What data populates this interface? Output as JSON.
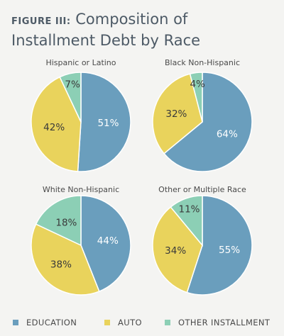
{
  "title": {
    "figure_label": "FIGURE III:",
    "text": "Composition of Installment Debt by Race"
  },
  "colors": {
    "education": "#6a9ebd",
    "auto": "#e9d35c",
    "other": "#8ccfb5"
  },
  "legend": {
    "education": "EDUCATION",
    "auto": "AUTO",
    "other": "OTHER INSTALLMENT"
  },
  "chart_data": {
    "type": "pie",
    "title": "Composition of Installment Debt by Race",
    "categories": [
      "EDUCATION",
      "AUTO",
      "OTHER INSTALLMENT"
    ],
    "legend_position": "bottom",
    "charts": [
      {
        "name": "Hispanic or Latino",
        "values": [
          51,
          42,
          7
        ],
        "labels": [
          "51%",
          "42%",
          "7%"
        ]
      },
      {
        "name": "Black Non-Hispanic",
        "values": [
          64,
          32,
          4
        ],
        "labels": [
          "64%",
          "32%",
          "4%"
        ]
      },
      {
        "name": "White Non-Hispanic",
        "values": [
          44,
          38,
          18
        ],
        "labels": [
          "44%",
          "38%",
          "18%"
        ]
      },
      {
        "name": "Other or Multiple Race",
        "values": [
          55,
          34,
          11
        ],
        "labels": [
          "55%",
          "34%",
          "11%"
        ]
      }
    ]
  }
}
